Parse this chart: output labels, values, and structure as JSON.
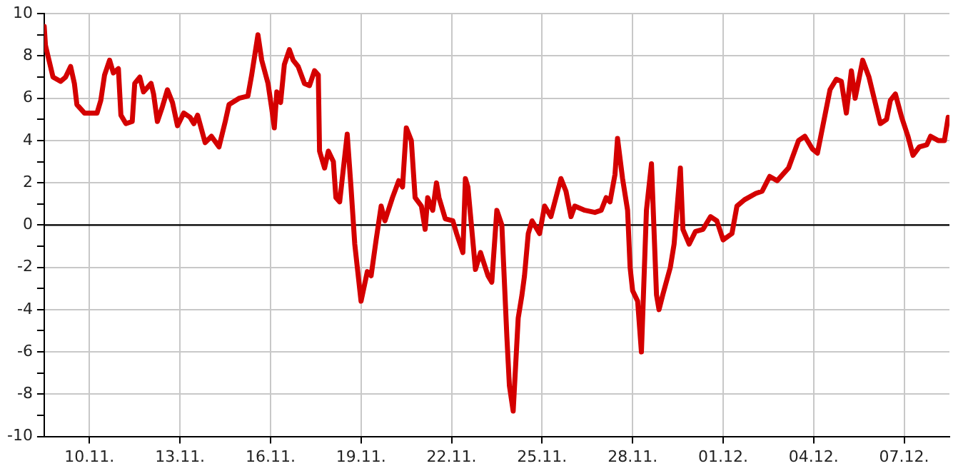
{
  "chart_data": {
    "type": "line",
    "x": [
      "--11-08T12:00",
      "--11-08T13:00",
      "--11-08T15:00",
      "--11-08T19:00",
      "--11-09T01:00",
      "--11-09T05:00",
      "--11-09T09:00",
      "--11-09T12:00",
      "--11-09T14:00",
      "--11-09T20:00",
      "--11-10T06:00",
      "--11-10T09:00",
      "--11-10T12:00",
      "--11-10T16:00",
      "--11-10T19:00",
      "--11-10T23:00",
      "--11-11T01:00",
      "--11-11T05:00",
      "--11-11T10:00",
      "--11-11T12:00",
      "--11-11T16:00",
      "--11-11T19:00",
      "--11-12T01:00",
      "--11-12T03:00",
      "--11-12T06:00",
      "--11-12T10:00",
      "--11-12T12:00",
      "--11-12T14:00",
      "--11-12T18:00",
      "--11-12T22:00",
      "--11-13T03:00",
      "--11-13T08:00",
      "--11-13T11:00",
      "--11-13T14:00",
      "--11-13T20:00",
      "--11-14T01:00",
      "--11-14T07:00",
      "--11-14T12:00",
      "--11-14T15:00",
      "--11-14T23:00",
      "--11-15T06:00",
      "--11-15T09:00",
      "--11-15T14:00",
      "--11-15T17:00",
      "--11-15T22:00",
      "--11-16T01:00",
      "--11-16T03:00",
      "--11-16T05:00",
      "--11-16T08:00",
      "--11-16T11:00",
      "--11-16T15:00",
      "--11-16T18:00",
      "--11-16T22:00",
      "--11-17T03:00",
      "--11-17T07:00",
      "--11-17T11:00",
      "--11-17T14:00",
      "--11-17T15:00",
      "--11-17T19:00",
      "--11-17T22:00",
      "--11-18T02:00",
      "--11-18T04:00",
      "--11-18T07:00",
      "--11-18T13:00",
      "--11-18T16:00",
      "--11-18T19:00",
      "--11-19T00:00",
      "--11-19T05:00",
      "--11-19T08:00",
      "--11-19T12:00",
      "--11-19T16:00",
      "--11-19T19:00",
      "--11-20T01:00",
      "--11-20T06:00",
      "--11-20T09:00",
      "--11-20T12:00",
      "--11-20T16:00",
      "--11-20T19:00",
      "--11-21T00:00",
      "--11-21T03:00",
      "--11-21T05:00",
      "--11-21T09:00",
      "--11-21T12:00",
      "--11-21T14:00",
      "--11-21T19:00",
      "--11-22T01:00",
      "--11-22T04:00",
      "--11-22T09:00",
      "--11-22T11:00",
      "--11-22T13:00",
      "--11-22T19:00",
      "--11-22T23:00",
      "--11-23T05:00",
      "--11-23T08:00",
      "--11-23T12:00",
      "--11-23T16:00",
      "--11-23T20:00",
      "--11-23T22:00",
      "--11-24T01:00",
      "--11-24T05:00",
      "--11-24T08:00",
      "--11-24T10:00",
      "--11-24T13:00",
      "--11-24T16:00",
      "--11-24T22:00",
      "--11-25T02:00",
      "--11-25T07:00",
      "--11-25T15:00",
      "--11-25T19:00",
      "--11-25T23:00",
      "--11-26T02:00",
      "--11-26T10:00",
      "--11-26T18:00",
      "--11-26T23:00",
      "--11-27T03:00",
      "--11-27T06:00",
      "--11-27T10:00",
      "--11-27T12:00",
      "--11-27T16:00",
      "--11-27T20:00",
      "--11-27T22:00",
      "--11-28T00:00",
      "--11-28T04:00",
      "--11-28T07:00",
      "--11-28T11:00",
      "--11-28T15:00",
      "--11-28T19:00",
      "--11-28T21:00",
      "--11-29T00:00",
      "--11-29T06:00",
      "--11-29T09:00",
      "--11-29T14:00",
      "--11-29T16:00",
      "--11-29T21:00",
      "--11-30T02:00",
      "--11-30T08:00",
      "--11-30T14:00",
      "--11-30T19:00",
      "--12-01T00:00",
      "--12-01T07:00",
      "--12-01T11:00",
      "--12-01T17:00",
      "--12-02T02:00",
      "--12-02T07:00",
      "--12-02T13:00",
      "--12-02T19:00",
      "--12-03T04:00",
      "--12-03T12:00",
      "--12-03T17:00",
      "--12-03T23:00",
      "--12-04T03:00",
      "--12-04T07:00",
      "--12-04T13:00",
      "--12-04T18:00",
      "--12-04T22:00",
      "--12-05T02:00",
      "--12-05T06:00",
      "--12-05T09:00",
      "--12-05T15:00",
      "--12-05T20:00",
      "--12-06T05:00",
      "--12-06T10:00",
      "--12-06T13:00",
      "--12-06T17:00",
      "--12-06T22:00",
      "--12-07T03:00",
      "--12-07T07:00",
      "--12-07T12:00",
      "--12-07T18:00",
      "--12-07T21:00",
      "--12-08T03:00",
      "--12-08T08:00",
      "--12-08T11:00"
    ],
    "series": [
      {
        "color": "#d40000",
        "values": [
          9.4,
          8.5,
          8.0,
          7.0,
          6.8,
          7.0,
          7.5,
          6.7,
          5.7,
          5.3,
          5.3,
          5.9,
          7.1,
          7.8,
          7.2,
          7.4,
          5.2,
          4.8,
          4.9,
          6.7,
          7.0,
          6.3,
          6.7,
          6.2,
          4.9,
          5.6,
          6.0,
          6.4,
          5.8,
          4.7,
          5.3,
          5.1,
          4.8,
          5.2,
          3.9,
          4.2,
          3.7,
          4.9,
          5.7,
          6.0,
          6.1,
          7.1,
          9.0,
          7.8,
          6.7,
          5.5,
          4.6,
          6.3,
          5.8,
          7.6,
          8.3,
          7.8,
          7.5,
          6.7,
          6.6,
          7.3,
          7.1,
          3.5,
          2.7,
          3.5,
          3.0,
          1.3,
          1.1,
          4.3,
          1.8,
          -0.9,
          -3.6,
          -2.2,
          -2.4,
          -0.7,
          0.9,
          0.2,
          1.3,
          2.1,
          1.8,
          4.6,
          4.0,
          1.3,
          0.9,
          -0.2,
          1.3,
          0.7,
          2.0,
          1.3,
          0.3,
          0.2,
          -0.4,
          -1.3,
          2.2,
          1.8,
          -2.1,
          -1.3,
          -2.4,
          -2.7,
          0.7,
          0.0,
          -5.3,
          -7.6,
          -8.8,
          -4.4,
          -3.3,
          -2.4,
          -0.4,
          0.2,
          -0.4,
          0.9,
          0.4,
          2.2,
          1.6,
          0.4,
          0.9,
          0.7,
          0.6,
          0.7,
          1.3,
          1.1,
          2.4,
          4.1,
          2.2,
          0.7,
          -2.0,
          -3.1,
          -3.6,
          -6.0,
          0.7,
          2.9,
          -3.3,
          -4.0,
          -3.3,
          -2.0,
          -0.9,
          2.7,
          -0.2,
          -0.9,
          -0.3,
          -0.2,
          0.4,
          0.2,
          -0.7,
          -0.4,
          0.9,
          1.2,
          1.5,
          1.6,
          2.3,
          2.1,
          2.7,
          4.0,
          4.2,
          3.6,
          3.4,
          4.6,
          6.4,
          6.9,
          6.8,
          5.3,
          7.3,
          6.0,
          7.8,
          7.0,
          4.8,
          5.0,
          5.9,
          6.2,
          5.1,
          4.2,
          3.3,
          3.7,
          3.8,
          4.2,
          4.0,
          4.0,
          5.1
        ]
      }
    ],
    "xlim": [
      "--11-08T12:00",
      "--12-08T12:00"
    ],
    "xticks": [
      {
        "value": "--11-10",
        "label": "10.11."
      },
      {
        "value": "--11-13",
        "label": "13.11."
      },
      {
        "value": "--11-16",
        "label": "16.11."
      },
      {
        "value": "--11-19",
        "label": "19.11."
      },
      {
        "value": "--11-22",
        "label": "22.11."
      },
      {
        "value": "--11-25",
        "label": "25.11."
      },
      {
        "value": "--11-28",
        "label": "28.11."
      },
      {
        "value": "--12-01",
        "label": "01.12."
      },
      {
        "value": "--12-04",
        "label": "04.12."
      },
      {
        "value": "--12-07",
        "label": "07.12."
      }
    ],
    "ylim": [
      -10,
      10
    ],
    "yticks": [
      -10,
      {
        "value": -9,
        "label": null
      },
      -8,
      {
        "value": -7,
        "label": null
      },
      -6,
      {
        "value": -5,
        "label": null
      },
      -4,
      {
        "value": -3,
        "label": null
      },
      -2,
      {
        "value": -1,
        "label": null
      },
      0,
      {
        "value": 1,
        "label": null
      },
      2,
      {
        "value": 3,
        "label": null
      },
      4,
      {
        "value": 5,
        "label": null
      },
      6,
      {
        "value": 7,
        "label": null
      },
      8,
      {
        "value": 9,
        "label": null
      },
      10
    ],
    "ref_lines": [
      {
        "axis": "y",
        "value": 0,
        "color": "#000000"
      }
    ],
    "grid": true,
    "legend": false,
    "marker": "none",
    "line_style": "solid"
  }
}
